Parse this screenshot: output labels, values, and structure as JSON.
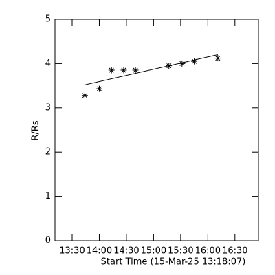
{
  "chart_data": {
    "type": "scatter",
    "x_label": "Start Time (15-Mar-25 13:18:07)",
    "y_label": "R/Rs",
    "xlim": [
      791,
      1016
    ],
    "ylim": [
      0,
      5
    ],
    "xticks": [
      {
        "value": 810,
        "label": "13:30"
      },
      {
        "value": 840,
        "label": "14:00"
      },
      {
        "value": 870,
        "label": "14:30"
      },
      {
        "value": 900,
        "label": "15:00"
      },
      {
        "value": 930,
        "label": "15:30"
      },
      {
        "value": 960,
        "label": "16:00"
      },
      {
        "value": 990,
        "label": "16:30"
      }
    ],
    "yticks": [
      0,
      1,
      2,
      3,
      4,
      5
    ],
    "series": [
      {
        "kind": "points",
        "color": "#000000",
        "x": [
          824,
          840,
          853.5,
          867,
          880,
          917,
          931.5,
          945,
          971
        ],
        "values": [
          3.28,
          3.43,
          3.85,
          3.85,
          3.85,
          3.95,
          4.0,
          4.05,
          4.12
        ]
      },
      {
        "kind": "fit",
        "color": "#000000",
        "x": [
          824,
          971
        ],
        "values": [
          3.52,
          4.2
        ]
      }
    ]
  }
}
